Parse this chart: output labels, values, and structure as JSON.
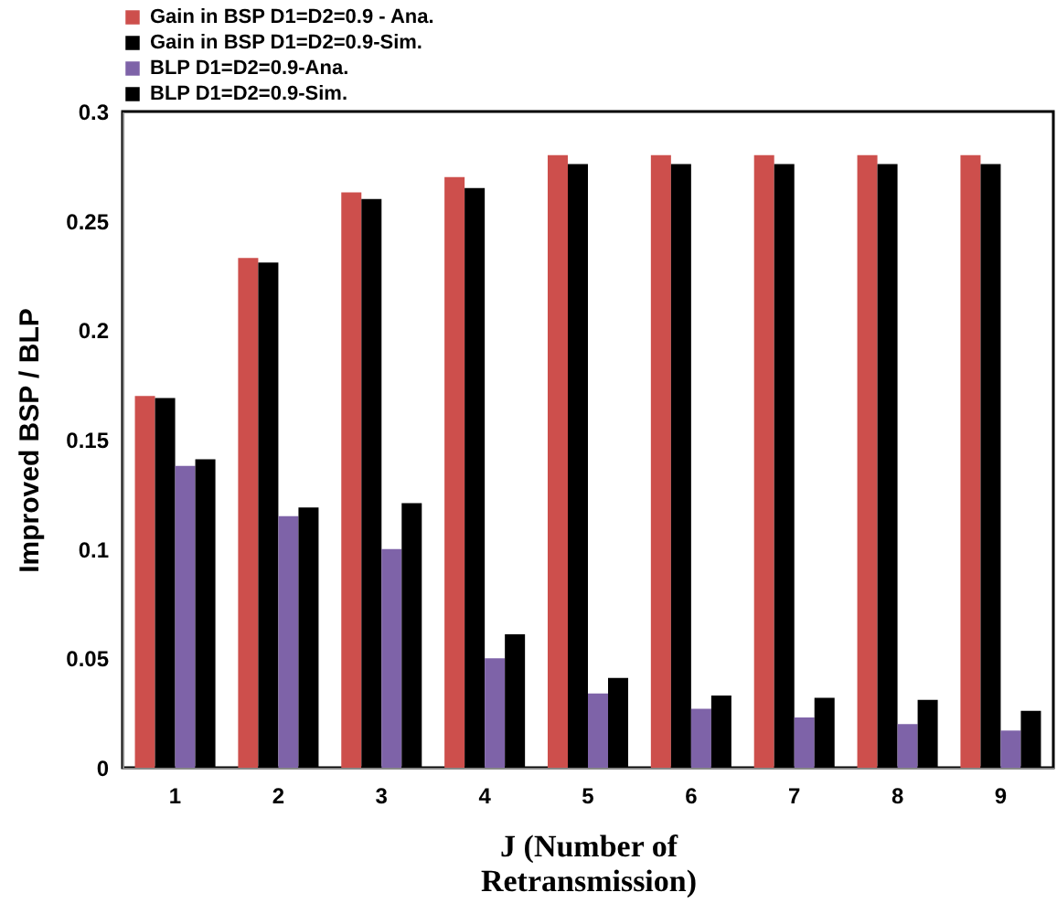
{
  "chart_data": {
    "type": "bar",
    "xlabel": "J (Number of\nRetransmission)",
    "ylabel": "Improved BSP / BLP",
    "categories": [
      "1",
      "2",
      "3",
      "4",
      "5",
      "6",
      "7",
      "8",
      "9"
    ],
    "series": [
      {
        "name": "Gain in BSP D1=D2=0.9 - Ana.",
        "color": "#cd4f4c",
        "values": [
          0.17,
          0.233,
          0.263,
          0.27,
          0.28,
          0.28,
          0.28,
          0.28,
          0.28
        ]
      },
      {
        "name": "Gain in BSP D1=D2=0.9-Sim.",
        "color": "#000000",
        "values": [
          0.169,
          0.231,
          0.26,
          0.265,
          0.276,
          0.276,
          0.276,
          0.276,
          0.276
        ]
      },
      {
        "name": "BLP D1=D2=0.9-Ana.",
        "color": "#7e63a8",
        "values": [
          0.138,
          0.115,
          0.1,
          0.05,
          0.034,
          0.027,
          0.023,
          0.02,
          0.017
        ]
      },
      {
        "name": "BLP D1=D2=0.9-Sim.",
        "color": "#000000",
        "values": [
          0.141,
          0.119,
          0.121,
          0.061,
          0.041,
          0.033,
          0.032,
          0.031,
          0.026
        ]
      }
    ],
    "ylim": [
      0,
      0.3
    ],
    "yticks": [
      0,
      0.05,
      0.1,
      0.15,
      0.2,
      0.25,
      0.3
    ],
    "grid": false,
    "legend": "top"
  }
}
